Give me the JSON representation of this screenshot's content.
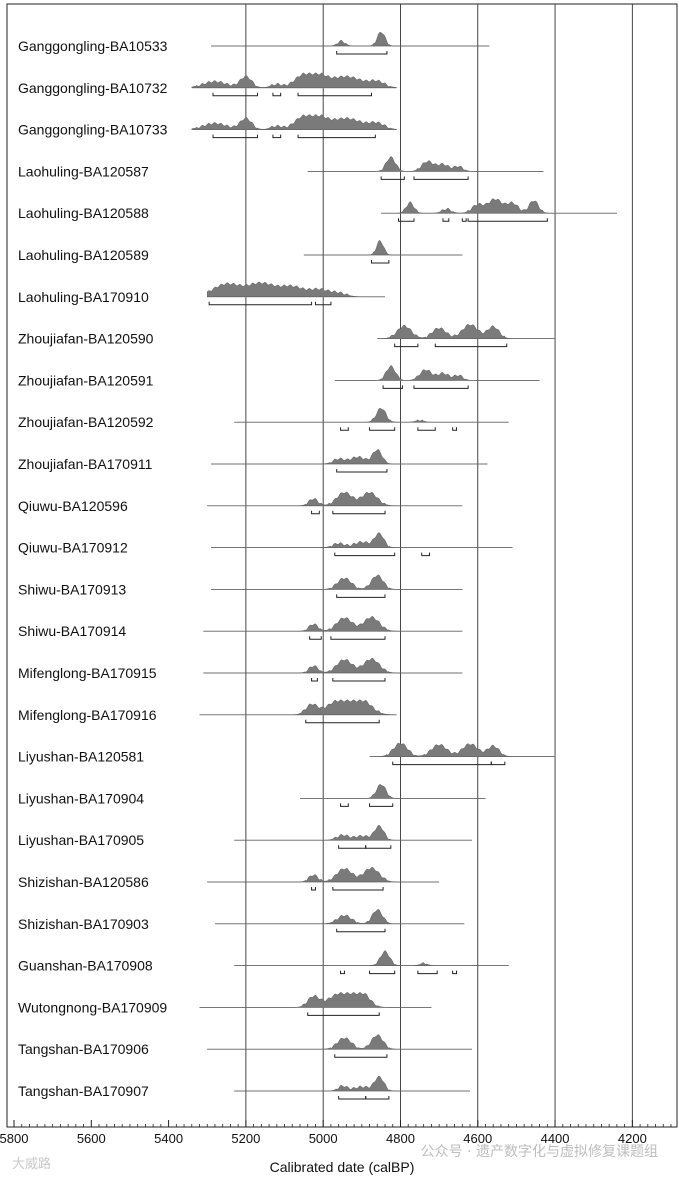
{
  "watermark": {
    "left": "大威路",
    "right": "公众号 · 遗产数字化与虚拟修复课题组"
  },
  "chart_data": {
    "type": "calibrated-radiocarbon-multiplot",
    "title": "",
    "xlabel": "Calibrated date (calBP)",
    "xlim": [
      5800,
      4100
    ],
    "x_ticks": [
      5800,
      5600,
      5400,
      5200,
      5000,
      4800,
      4600,
      4400,
      4200
    ],
    "x_tick_labels": [
      "5800",
      "5600",
      "5400",
      "5200",
      "5000",
      "4800",
      "4600",
      "4400",
      "4200"
    ],
    "vertical_gridlines_at": [
      5200,
      5000,
      4800,
      4600,
      4400,
      4200
    ],
    "series": [
      {
        "name": "Ganggongling-BA10533",
        "range": [
          5290,
          4570
        ],
        "peaks": [
          [
            4953,
            10,
            0.35
          ],
          [
            4850,
            10,
            1.0
          ]
        ],
        "brackets": [
          [
            4965,
            4835
          ]
        ]
      },
      {
        "name": "Ganggongling-BA10732",
        "range": [
          5340,
          4810
        ],
        "peaks": [
          [
            5280,
            30,
            0.45
          ],
          [
            5200,
            15,
            0.8
          ],
          [
            5120,
            15,
            0.25
          ],
          [
            5060,
            20,
            0.6
          ],
          [
            5020,
            25,
            0.95
          ],
          [
            4940,
            40,
            0.8
          ],
          [
            4860,
            20,
            0.4
          ]
        ],
        "brackets": [
          [
            5285,
            5170
          ],
          [
            5130,
            5110
          ],
          [
            5065,
            4875
          ]
        ]
      },
      {
        "name": "Ganggongling-BA10733",
        "range": [
          5340,
          4810
        ],
        "peaks": [
          [
            5280,
            30,
            0.45
          ],
          [
            5200,
            15,
            0.8
          ],
          [
            5120,
            15,
            0.25
          ],
          [
            5060,
            20,
            0.6
          ],
          [
            5020,
            25,
            0.95
          ],
          [
            4940,
            40,
            0.8
          ],
          [
            4860,
            20,
            0.4
          ]
        ],
        "brackets": [
          [
            5285,
            5170
          ],
          [
            5130,
            5110
          ],
          [
            5065,
            4865
          ]
        ]
      },
      {
        "name": "Laohuling-BA120587",
        "range": [
          5040,
          4430
        ],
        "peaks": [
          [
            4825,
            12,
            1.0
          ],
          [
            4730,
            15,
            0.7
          ],
          [
            4690,
            15,
            0.5
          ],
          [
            4650,
            12,
            0.35
          ]
        ],
        "brackets": [
          [
            4850,
            4790
          ],
          [
            4765,
            4625
          ]
        ]
      },
      {
        "name": "Laohuling-BA120588",
        "range": [
          4850,
          4240
        ],
        "peaks": [
          [
            4775,
            10,
            0.75
          ],
          [
            4680,
            12,
            0.3
          ],
          [
            4600,
            15,
            0.6
          ],
          [
            4555,
            18,
            1.0
          ],
          [
            4510,
            15,
            0.7
          ],
          [
            4455,
            12,
            0.9
          ]
        ],
        "brackets": [
          [
            4805,
            4765
          ],
          [
            4690,
            4675
          ],
          [
            4640,
            4630
          ],
          [
            4625,
            4420
          ]
        ]
      },
      {
        "name": "Laohuling-BA120589",
        "range": [
          5050,
          4640
        ],
        "peaks": [
          [
            4853,
            9,
            1.0
          ]
        ],
        "brackets": [
          [
            4875,
            4830
          ]
        ]
      },
      {
        "name": "Laohuling-BA170910",
        "range": [
          5300,
          4840
        ],
        "peaks": [
          [
            5250,
            35,
            0.9
          ],
          [
            5160,
            35,
            0.95
          ],
          [
            5080,
            30,
            0.7
          ],
          [
            5010,
            25,
            0.5
          ],
          [
            4960,
            20,
            0.25
          ]
        ],
        "brackets": [
          [
            5295,
            5030
          ],
          [
            5020,
            4980
          ]
        ]
      },
      {
        "name": "Zhoujiafan-BA120590",
        "range": [
          4860,
          4400
        ],
        "peaks": [
          [
            4790,
            18,
            0.9
          ],
          [
            4700,
            18,
            0.75
          ],
          [
            4620,
            20,
            1.0
          ],
          [
            4560,
            15,
            0.85
          ]
        ],
        "brackets": [
          [
            4815,
            4755
          ],
          [
            4710,
            4525
          ]
        ]
      },
      {
        "name": "Zhoujiafan-BA120591",
        "range": [
          4970,
          4440
        ],
        "peaks": [
          [
            4825,
            12,
            1.0
          ],
          [
            4735,
            15,
            0.75
          ],
          [
            4690,
            15,
            0.5
          ],
          [
            4650,
            12,
            0.35
          ]
        ],
        "brackets": [
          [
            4845,
            4795
          ],
          [
            4765,
            4625
          ]
        ]
      },
      {
        "name": "Zhoujiafan-BA120592",
        "range": [
          5230,
          4520
        ],
        "peaks": [
          [
            4850,
            12,
            1.0
          ],
          [
            4750,
            10,
            0.15
          ]
        ],
        "brackets": [
          [
            4955,
            4935
          ],
          [
            4880,
            4815
          ],
          [
            4755,
            4710
          ],
          [
            4665,
            4655
          ]
        ]
      },
      {
        "name": "Zhoujiafan-BA170911",
        "range": [
          5290,
          4575
        ],
        "peaks": [
          [
            4960,
            15,
            0.35
          ],
          [
            4860,
            12,
            1.0
          ],
          [
            4910,
            20,
            0.5
          ]
        ],
        "brackets": [
          [
            4965,
            4835
          ]
        ]
      },
      {
        "name": "Qiuwu-BA120596",
        "range": [
          5300,
          4640
        ],
        "peaks": [
          [
            5025,
            12,
            0.5
          ],
          [
            4945,
            20,
            0.95
          ],
          [
            4880,
            20,
            0.95
          ]
        ],
        "brackets": [
          [
            5030,
            5010
          ],
          [
            4975,
            4840
          ]
        ]
      },
      {
        "name": "Qiuwu-BA170912",
        "range": [
          5290,
          4510
        ],
        "peaks": [
          [
            4960,
            15,
            0.3
          ],
          [
            4855,
            12,
            1.0
          ],
          [
            4900,
            20,
            0.4
          ]
        ],
        "brackets": [
          [
            4970,
            4815
          ],
          [
            4745,
            4725
          ]
        ]
      },
      {
        "name": "Shiwu-BA170913",
        "range": [
          5290,
          4640
        ],
        "peaks": [
          [
            4945,
            18,
            0.8
          ],
          [
            4860,
            15,
            1.0
          ]
        ],
        "brackets": [
          [
            4965,
            4840
          ]
        ]
      },
      {
        "name": "Shiwu-BA170914",
        "range": [
          5310,
          4640
        ],
        "peaks": [
          [
            5025,
            12,
            0.5
          ],
          [
            4945,
            20,
            0.95
          ],
          [
            4875,
            20,
            1.0
          ]
        ],
        "brackets": [
          [
            5035,
            5005
          ],
          [
            4980,
            4840
          ]
        ]
      },
      {
        "name": "Mifenglong-BA170915",
        "range": [
          5310,
          4640
        ],
        "peaks": [
          [
            5025,
            12,
            0.5
          ],
          [
            4945,
            20,
            0.95
          ],
          [
            4875,
            20,
            1.0
          ]
        ],
        "brackets": [
          [
            5030,
            5015
          ],
          [
            4975,
            4840
          ]
        ]
      },
      {
        "name": "Mifenglong-BA170916",
        "range": [
          5320,
          4810
        ],
        "peaks": [
          [
            5030,
            15,
            0.7
          ],
          [
            4960,
            30,
            1.0
          ],
          [
            4900,
            25,
            1.0
          ]
        ],
        "brackets": [
          [
            5045,
            4855
          ]
        ]
      },
      {
        "name": "Liyushan-BA120581",
        "range": [
          4880,
          4400
        ],
        "peaks": [
          [
            4800,
            18,
            0.95
          ],
          [
            4700,
            20,
            0.85
          ],
          [
            4620,
            20,
            0.9
          ],
          [
            4560,
            15,
            0.75
          ]
        ],
        "brackets": [
          [
            4820,
            4565
          ],
          [
            4565,
            4530
          ]
        ]
      },
      {
        "name": "Liyushan-BA170904",
        "range": [
          5060,
          4580
        ],
        "peaks": [
          [
            4850,
            12,
            1.0
          ]
        ],
        "brackets": [
          [
            4955,
            4935
          ],
          [
            4880,
            4820
          ]
        ]
      },
      {
        "name": "Liyushan-BA170905",
        "range": [
          5230,
          4615
        ],
        "peaks": [
          [
            4950,
            15,
            0.35
          ],
          [
            4855,
            12,
            1.0
          ],
          [
            4900,
            20,
            0.3
          ]
        ],
        "brackets": [
          [
            4960,
            4890
          ],
          [
            4890,
            4825
          ]
        ]
      },
      {
        "name": "Shizishan-BA120586",
        "range": [
          5300,
          4700
        ],
        "peaks": [
          [
            5025,
            12,
            0.5
          ],
          [
            4945,
            20,
            0.95
          ],
          [
            4875,
            20,
            1.0
          ]
        ],
        "brackets": [
          [
            5030,
            5020
          ],
          [
            4975,
            4845
          ]
        ]
      },
      {
        "name": "Shizishan-BA170903",
        "range": [
          5280,
          4635
        ],
        "peaks": [
          [
            4945,
            18,
            0.6
          ],
          [
            4860,
            13,
            1.0
          ]
        ],
        "brackets": [
          [
            4965,
            4840
          ]
        ]
      },
      {
        "name": "Guanshan-BA170908",
        "range": [
          5230,
          4520
        ],
        "peaks": [
          [
            4840,
            12,
            1.0
          ],
          [
            4740,
            10,
            0.15
          ]
        ],
        "brackets": [
          [
            4955,
            4945
          ],
          [
            4880,
            4815
          ],
          [
            4755,
            4705
          ],
          [
            4665,
            4655
          ]
        ]
      },
      {
        "name": "Wutongnong-BA170909",
        "range": [
          5320,
          4720
        ],
        "peaks": [
          [
            5025,
            15,
            0.75
          ],
          [
            4955,
            30,
            1.0
          ],
          [
            4900,
            20,
            0.95
          ]
        ],
        "brackets": [
          [
            5040,
            4855
          ]
        ]
      },
      {
        "name": "Tangshan-BA170906",
        "range": [
          5300,
          4615
        ],
        "peaks": [
          [
            4945,
            18,
            0.8
          ],
          [
            4860,
            15,
            1.0
          ]
        ],
        "brackets": [
          [
            4970,
            4835
          ]
        ]
      },
      {
        "name": "Tangshan-BA170907",
        "range": [
          5230,
          4620
        ],
        "peaks": [
          [
            4950,
            12,
            0.35
          ],
          [
            4855,
            12,
            1.0
          ],
          [
            4900,
            20,
            0.3
          ]
        ],
        "brackets": [
          [
            4960,
            4890
          ],
          [
            4890,
            4830
          ]
        ]
      }
    ]
  }
}
